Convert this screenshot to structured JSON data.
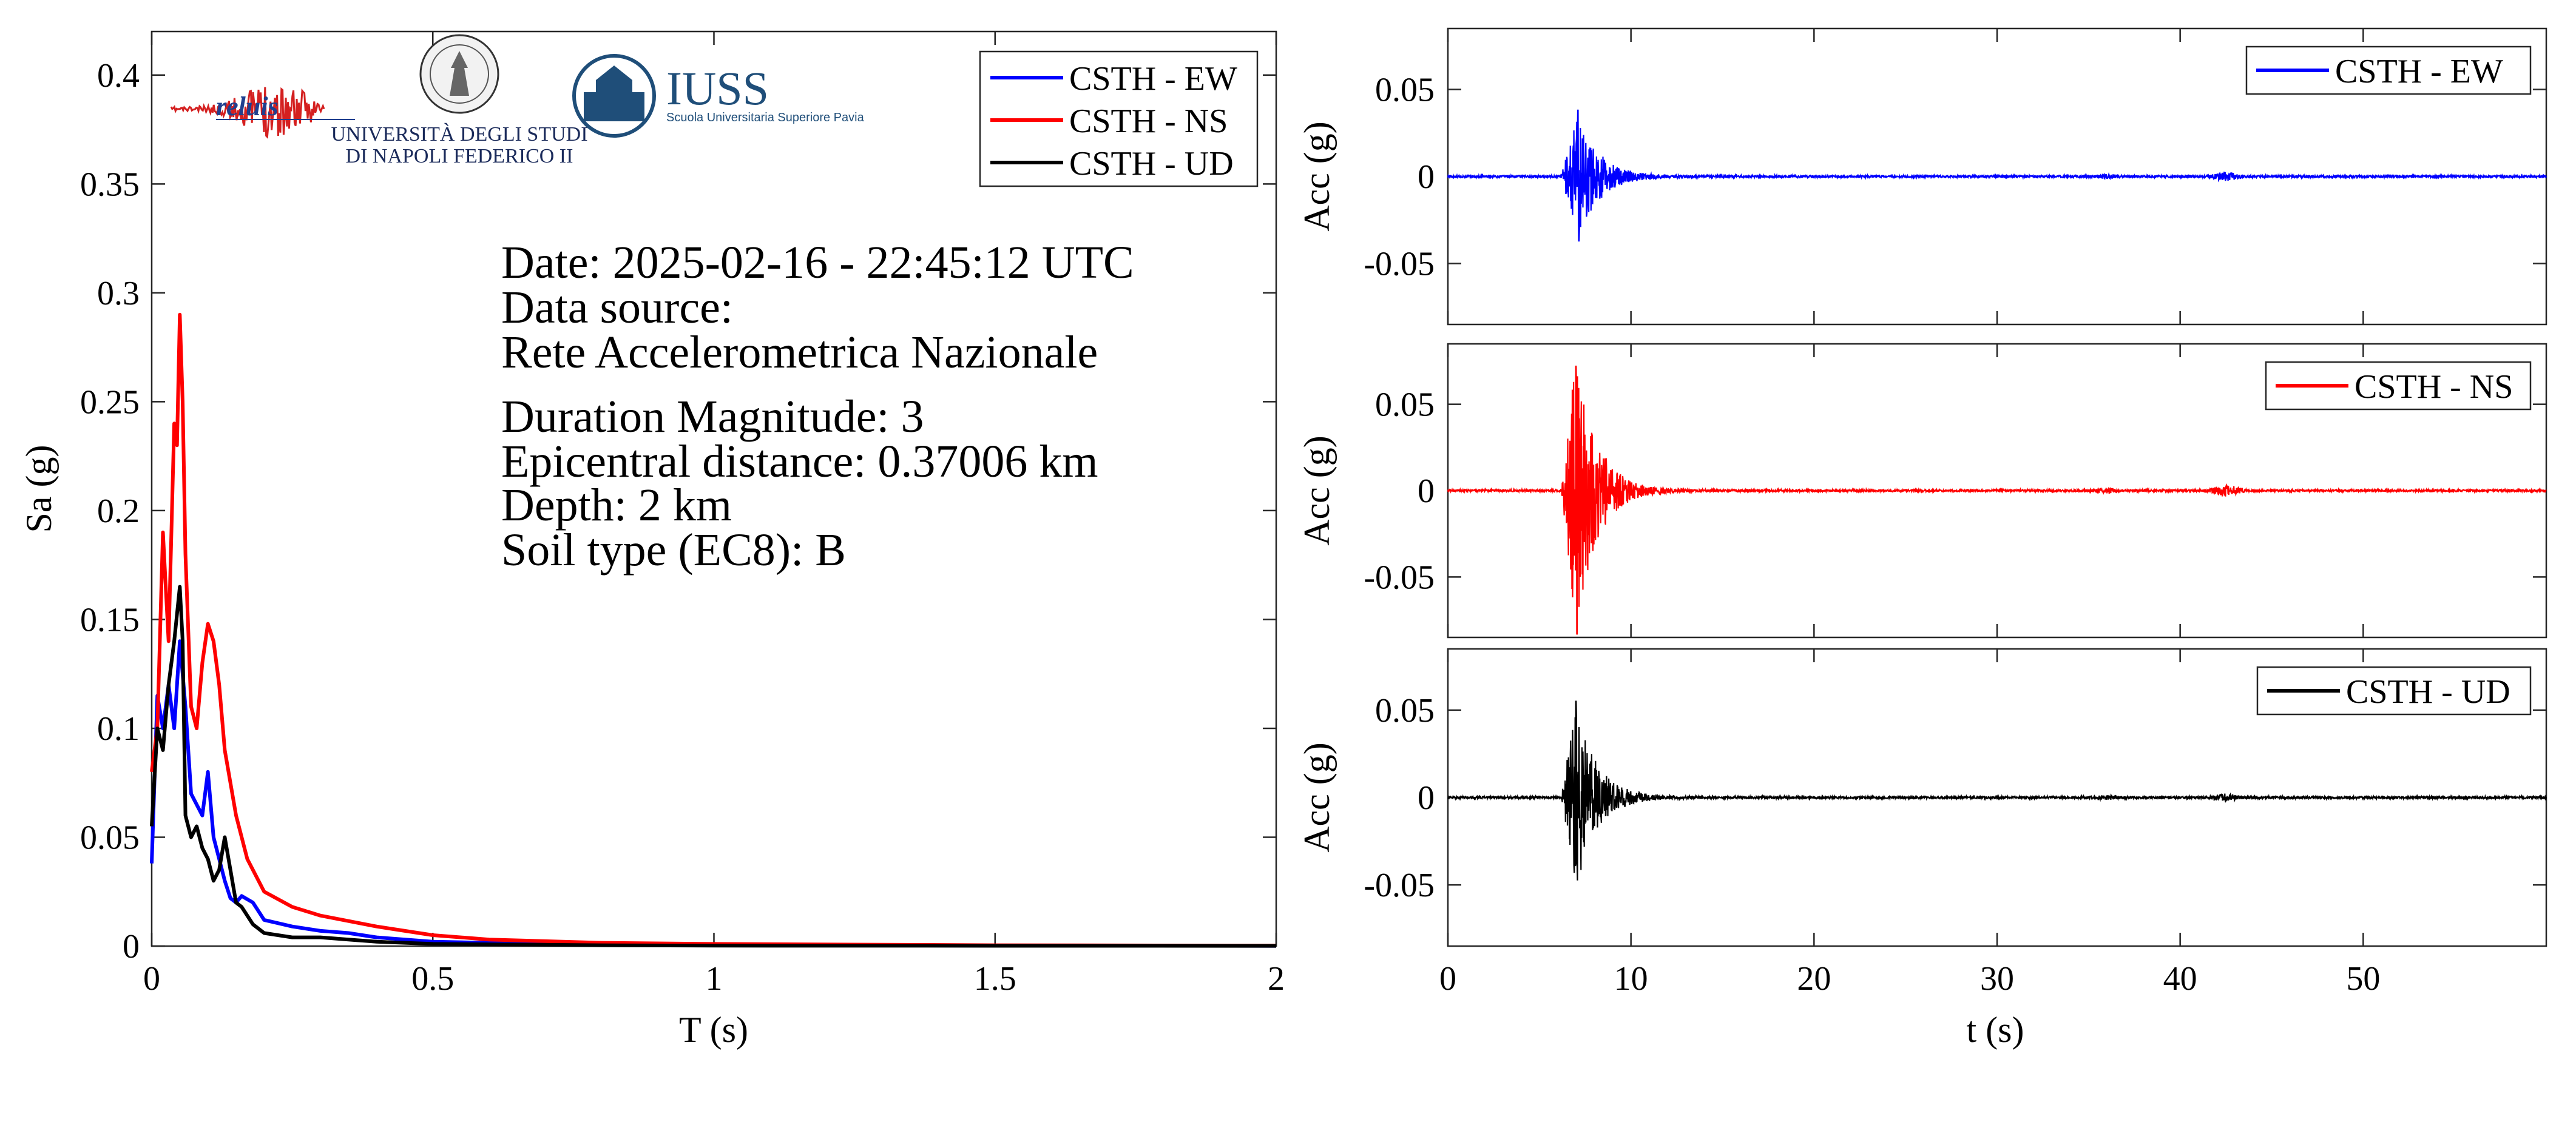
{
  "colors": {
    "ew": "#0000ff",
    "ns": "#ff0000",
    "ud": "#000000",
    "iuss_blue": "#1f4e79"
  },
  "logos": {
    "reluis": "reluis",
    "unina_line1": "UNIVERSITÀ DEGLI STUDI",
    "unina_line2": "DI NAPOLI FEDERICO II",
    "iuss_title": "IUSS",
    "iuss_subtitle": "Scuola Universitaria Superiore Pavia"
  },
  "info": {
    "date": "Date: 2025-02-16 - 22:45:12 UTC",
    "source_label": "Data source:",
    "source": "Rete Accelerometrica Nazionale",
    "magnitude": "Duration Magnitude: 3",
    "distance": "Epicentral distance: 0.37006 km",
    "depth": "Depth: 2 km",
    "soil": "Soil type (EC8): B"
  },
  "chart_data": [
    {
      "type": "line",
      "xlabel": "T (s)",
      "ylabel": "Sa (g)",
      "xlim": [
        0,
        2
      ],
      "ylim": [
        0,
        0.42
      ],
      "xticks": [
        "0",
        "0.5",
        "1",
        "1.5",
        "2"
      ],
      "yticks": [
        "0",
        "0.05",
        "0.1",
        "0.15",
        "0.2",
        "0.25",
        "0.3",
        "0.35",
        "0.4"
      ],
      "legend_position": "top-right",
      "series": [
        {
          "name": "CSTH - EW",
          "color": "#0000ff",
          "x": [
            0,
            0.01,
            0.02,
            0.03,
            0.04,
            0.05,
            0.06,
            0.07,
            0.08,
            0.09,
            0.1,
            0.11,
            0.12,
            0.13,
            0.14,
            0.15,
            0.16,
            0.18,
            0.2,
            0.25,
            0.3,
            0.35,
            0.4,
            0.5,
            0.6,
            0.8,
            1,
            1.5,
            2
          ],
          "y": [
            0.038,
            0.115,
            0.1,
            0.12,
            0.1,
            0.14,
            0.11,
            0.07,
            0.065,
            0.06,
            0.08,
            0.05,
            0.04,
            0.03,
            0.022,
            0.02,
            0.023,
            0.02,
            0.012,
            0.009,
            0.007,
            0.006,
            0.004,
            0.002,
            0.0015,
            0.001,
            0.0005,
            0.0002,
            0.0001
          ]
        },
        {
          "name": "CSTH - NS",
          "color": "#ff0000",
          "x": [
            0,
            0.01,
            0.02,
            0.03,
            0.04,
            0.045,
            0.05,
            0.055,
            0.06,
            0.07,
            0.08,
            0.09,
            0.1,
            0.11,
            0.12,
            0.13,
            0.14,
            0.15,
            0.17,
            0.2,
            0.25,
            0.3,
            0.4,
            0.5,
            0.6,
            0.8,
            1,
            1.5,
            2
          ],
          "y": [
            0.08,
            0.1,
            0.19,
            0.14,
            0.24,
            0.23,
            0.29,
            0.25,
            0.18,
            0.11,
            0.1,
            0.13,
            0.148,
            0.14,
            0.12,
            0.09,
            0.075,
            0.06,
            0.04,
            0.025,
            0.018,
            0.014,
            0.009,
            0.005,
            0.003,
            0.0015,
            0.001,
            0.0004,
            0.0002
          ]
        },
        {
          "name": "CSTH - UD",
          "color": "#000000",
          "x": [
            0,
            0.01,
            0.02,
            0.03,
            0.04,
            0.05,
            0.055,
            0.06,
            0.07,
            0.08,
            0.09,
            0.1,
            0.11,
            0.12,
            0.13,
            0.14,
            0.15,
            0.16,
            0.18,
            0.2,
            0.25,
            0.3,
            0.35,
            0.4,
            0.5,
            0.6,
            0.8,
            1,
            2
          ],
          "y": [
            0.055,
            0.1,
            0.09,
            0.12,
            0.14,
            0.165,
            0.14,
            0.06,
            0.05,
            0.055,
            0.045,
            0.04,
            0.03,
            0.035,
            0.05,
            0.035,
            0.02,
            0.018,
            0.01,
            0.006,
            0.004,
            0.004,
            0.003,
            0.002,
            0.001,
            0.0008,
            0.0004,
            0.0002,
            0.0001
          ]
        }
      ]
    },
    {
      "type": "line",
      "ylabel": "Acc (g)",
      "xlim": [
        0,
        60
      ],
      "ylim": [
        -0.085,
        0.085
      ],
      "yticks": [
        "0.05",
        "0",
        "-0.05"
      ],
      "legend_position": "top-right",
      "series": [
        {
          "name": "CSTH - EW",
          "color": "#0000ff",
          "event_start": 6.2,
          "peak_time": 7.1,
          "peak_pos": 0.038,
          "peak_neg": -0.037,
          "decay_end": 12,
          "noise": 0.0006,
          "bursts": [
            {
              "t": 36,
              "amp": 0.0008
            },
            {
              "t": 42.5,
              "amp": 0.002
            }
          ]
        }
      ]
    },
    {
      "type": "line",
      "ylabel": "Acc (g)",
      "xlim": [
        0,
        60
      ],
      "ylim": [
        -0.085,
        0.085
      ],
      "yticks": [
        "0.05",
        "0",
        "-0.05"
      ],
      "legend_position": "top-right",
      "series": [
        {
          "name": "CSTH - NS",
          "color": "#ff0000",
          "event_start": 6.2,
          "peak_time": 7.0,
          "peak_pos": 0.072,
          "peak_neg": -0.083,
          "decay_end": 12,
          "noise": 0.0006,
          "bursts": [
            {
              "t": 36,
              "amp": 0.001
            },
            {
              "t": 42.5,
              "amp": 0.003
            }
          ]
        }
      ]
    },
    {
      "type": "line",
      "xlabel": "t (s)",
      "ylabel": "Acc (g)",
      "xlim": [
        0,
        60
      ],
      "ylim": [
        -0.085,
        0.085
      ],
      "xticks": [
        "0",
        "10",
        "20",
        "30",
        "40",
        "50"
      ],
      "yticks": [
        "0.05",
        "0",
        "-0.05"
      ],
      "legend_position": "top-right",
      "series": [
        {
          "name": "CSTH - UD",
          "color": "#000000",
          "event_start": 6.2,
          "peak_time": 7.0,
          "peak_pos": 0.055,
          "peak_neg": -0.038,
          "decay_end": 12,
          "noise": 0.0006,
          "bursts": [
            {
              "t": 36,
              "amp": 0.0008
            },
            {
              "t": 42.5,
              "amp": 0.0018
            }
          ]
        }
      ]
    }
  ]
}
